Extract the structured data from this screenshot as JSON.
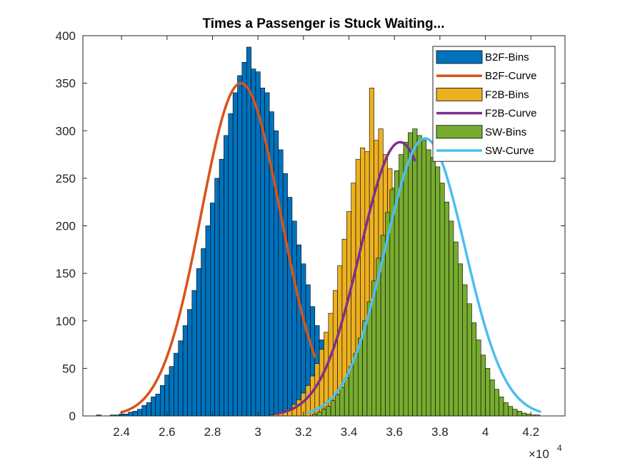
{
  "chart_data": {
    "type": "bar",
    "title": "Times a Passenger is Stuck Waiting...",
    "xlabel": "",
    "ylabel": "",
    "xlim": [
      22300,
      43500
    ],
    "ylim": [
      0,
      400
    ],
    "x_ticks": [
      24000,
      26000,
      28000,
      30000,
      32000,
      34000,
      36000,
      38000,
      40000,
      42000
    ],
    "x_tick_labels": [
      "2.4",
      "2.6",
      "2.8",
      "3",
      "3.2",
      "3.4",
      "3.6",
      "3.8",
      "4",
      "4.2"
    ],
    "x_exponent_base": "×10",
    "x_exponent_power": "4",
    "y_ticks": [
      0,
      50,
      100,
      150,
      200,
      250,
      300,
      350,
      400
    ],
    "y_tick_labels": [
      "0",
      "50",
      "100",
      "150",
      "200",
      "250",
      "300",
      "350",
      "400"
    ],
    "grid": false,
    "legend_position": "top-right",
    "histograms": [
      {
        "name": "B2F-Bins",
        "color": "#0072BD",
        "start": 22700,
        "width": 200,
        "counts": [
          0,
          1,
          0,
          0,
          1,
          1,
          2,
          2,
          4,
          5,
          7,
          11,
          14,
          20,
          23,
          32,
          43,
          52,
          66,
          79,
          95,
          112,
          132,
          155,
          176,
          200,
          224,
          250,
          270,
          295,
          318,
          340,
          358,
          372,
          388,
          365,
          362,
          345,
          340,
          320,
          300,
          280,
          255,
          230,
          205,
          180,
          160,
          138,
          115,
          95,
          80,
          65,
          50,
          40,
          28,
          20,
          15,
          10,
          7,
          4,
          3,
          2,
          1,
          1,
          0,
          0
        ]
      },
      {
        "name": "F2B-Bins",
        "color": "#EDB120",
        "start": 30300,
        "width": 200,
        "counts": [
          0,
          1,
          2,
          3,
          5,
          8,
          12,
          17,
          24,
          32,
          42,
          55,
          70,
          88,
          108,
          132,
          158,
          186,
          215,
          245,
          270,
          282,
          278,
          345,
          290,
          302,
          275,
          260,
          240,
          215,
          190,
          165,
          140,
          116,
          95,
          75,
          58,
          43,
          31,
          22,
          15,
          10,
          6,
          4,
          2,
          1,
          0
        ]
      },
      {
        "name": "SW-Bins",
        "color": "#77AC30",
        "start": 32200,
        "width": 200,
        "counts": [
          0,
          2,
          4,
          7,
          10,
          16,
          22,
          30,
          40,
          52,
          66,
          82,
          100,
          120,
          142,
          166,
          190,
          214,
          238,
          258,
          275,
          288,
          298,
          302,
          295,
          290,
          280,
          272,
          262,
          245,
          225,
          205,
          183,
          160,
          138,
          118,
          98,
          80,
          64,
          50,
          38,
          28,
          20,
          14,
          10,
          7,
          5,
          3,
          2,
          1,
          1,
          0
        ]
      }
    ],
    "curves": [
      {
        "name": "B2F-Curve",
        "color": "#D95319",
        "mu": 29250,
        "sigma": 1750,
        "peak": 350,
        "x_start": 24000,
        "x_end": 32500
      },
      {
        "name": "F2B-Curve",
        "color": "#7E2F8E",
        "mu": 36250,
        "sigma": 1750,
        "peak": 288,
        "x_start": 30800,
        "x_end": 36900
      },
      {
        "name": "SW-Curve",
        "color": "#4DBEEE",
        "mu": 37350,
        "sigma": 1750,
        "peak": 292,
        "x_start": 32200,
        "x_end": 42400
      }
    ]
  },
  "legend": {
    "entries": [
      {
        "label": "B2F-Bins",
        "kind": "patch",
        "color": "#0072BD"
      },
      {
        "label": "B2F-Curve",
        "kind": "line",
        "color": "#D95319"
      },
      {
        "label": "F2B-Bins",
        "kind": "patch",
        "color": "#EDB120"
      },
      {
        "label": "F2B-Curve",
        "kind": "line",
        "color": "#7E2F8E"
      },
      {
        "label": "SW-Bins",
        "kind": "patch",
        "color": "#77AC30"
      },
      {
        "label": "SW-Curve",
        "kind": "line",
        "color": "#4DBEEE"
      }
    ]
  }
}
